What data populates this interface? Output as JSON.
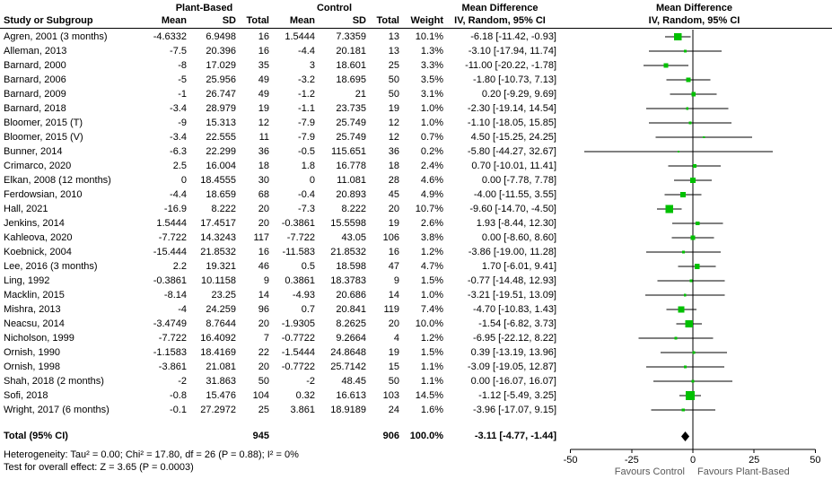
{
  "headers": {
    "study": "Study or Subgroup",
    "group1": "Plant-Based",
    "group2": "Control",
    "mean": "Mean",
    "sd": "SD",
    "total": "Total",
    "weight": "Weight",
    "md_line1": "Mean Difference",
    "md_line2": "IV, Random, 95% CI"
  },
  "footer": {
    "heterogeneity": "Heterogeneity: Tau² = 0.00; Chi² = 17.80, df = 26 (P = 0.88); I² = 0%",
    "overall_effect": "Test for overall effect: Z = 3.65 (P = 0.0003)"
  },
  "colors": {
    "marker_green": "#00c000",
    "line_black": "#000000",
    "diamond_black": "#000000",
    "favours_grey": "#595959"
  },
  "chart_data": {
    "type": "forest",
    "effect_measure": "Mean Difference, IV, Random, 95% CI",
    "axis": {
      "min": -50,
      "max": 50,
      "ticks": [
        {
          "value": -50,
          "label": "-50"
        },
        {
          "value": -25,
          "label": "-25"
        },
        {
          "value": 0,
          "label": "0"
        },
        {
          "value": 25,
          "label": "25"
        },
        {
          "value": 50,
          "label": "50"
        }
      ],
      "favours_left": "Favours Control",
      "favours_right": "Favours Plant-Based"
    },
    "studies": [
      {
        "name": "Agren, 2001 (3 months)",
        "pb_mean": "-4.6332",
        "pb_sd": "6.9498",
        "pb_total": "16",
        "c_mean": "1.5444",
        "c_sd": "7.3359",
        "c_total": "13",
        "weight": "10.1%",
        "md_ci": "-6.18 [-11.42, -0.93]",
        "md": -6.18,
        "lo": -11.42,
        "hi": -0.93
      },
      {
        "name": "Alleman, 2013",
        "pb_mean": "-7.5",
        "pb_sd": "20.396",
        "pb_total": "16",
        "c_mean": "-4.4",
        "c_sd": "20.181",
        "c_total": "13",
        "weight": "1.3%",
        "md_ci": "-3.10 [-17.94, 11.74]",
        "md": -3.1,
        "lo": -17.94,
        "hi": 11.74
      },
      {
        "name": "Barnard, 2000",
        "pb_mean": "-8",
        "pb_sd": "17.029",
        "pb_total": "35",
        "c_mean": "3",
        "c_sd": "18.601",
        "c_total": "25",
        "weight": "3.3%",
        "md_ci": "-11.00 [-20.22, -1.78]",
        "md": -11.0,
        "lo": -20.22,
        "hi": -1.78
      },
      {
        "name": "Barnard, 2006",
        "pb_mean": "-5",
        "pb_sd": "25.956",
        "pb_total": "49",
        "c_mean": "-3.2",
        "c_sd": "18.695",
        "c_total": "50",
        "weight": "3.5%",
        "md_ci": "-1.80 [-10.73, 7.13]",
        "md": -1.8,
        "lo": -10.73,
        "hi": 7.13
      },
      {
        "name": "Barnard, 2009",
        "pb_mean": "-1",
        "pb_sd": "26.747",
        "pb_total": "49",
        "c_mean": "-1.2",
        "c_sd": "21",
        "c_total": "50",
        "weight": "3.1%",
        "md_ci": "0.20 [-9.29, 9.69]",
        "md": 0.2,
        "lo": -9.29,
        "hi": 9.69
      },
      {
        "name": "Barnard, 2018",
        "pb_mean": "-3.4",
        "pb_sd": "28.979",
        "pb_total": "19",
        "c_mean": "-1.1",
        "c_sd": "23.735",
        "c_total": "19",
        "weight": "1.0%",
        "md_ci": "-2.30 [-19.14, 14.54]",
        "md": -2.3,
        "lo": -19.14,
        "hi": 14.54
      },
      {
        "name": "Bloomer, 2015 (T)",
        "pb_mean": "-9",
        "pb_sd": "15.313",
        "pb_total": "12",
        "c_mean": "-7.9",
        "c_sd": "25.749",
        "c_total": "12",
        "weight": "1.0%",
        "md_ci": "-1.10 [-18.05, 15.85]",
        "md": -1.1,
        "lo": -18.05,
        "hi": 15.85
      },
      {
        "name": "Bloomer, 2015 (V)",
        "pb_mean": "-3.4",
        "pb_sd": "22.555",
        "pb_total": "11",
        "c_mean": "-7.9",
        "c_sd": "25.749",
        "c_total": "12",
        "weight": "0.7%",
        "md_ci": "4.50 [-15.25, 24.25]",
        "md": 4.5,
        "lo": -15.25,
        "hi": 24.25
      },
      {
        "name": "Bunner, 2014",
        "pb_mean": "-6.3",
        "pb_sd": "22.299",
        "pb_total": "36",
        "c_mean": "-0.5",
        "c_sd": "115.651",
        "c_total": "36",
        "weight": "0.2%",
        "md_ci": "-5.80 [-44.27, 32.67]",
        "md": -5.8,
        "lo": -44.27,
        "hi": 32.67
      },
      {
        "name": "Crimarco, 2020",
        "pb_mean": "2.5",
        "pb_sd": "16.004",
        "pb_total": "18",
        "c_mean": "1.8",
        "c_sd": "16.778",
        "c_total": "18",
        "weight": "2.4%",
        "md_ci": "0.70 [-10.01, 11.41]",
        "md": 0.7,
        "lo": -10.01,
        "hi": 11.41
      },
      {
        "name": "Elkan, 2008 (12 months)",
        "pb_mean": "0",
        "pb_sd": "18.4555",
        "pb_total": "30",
        "c_mean": "0",
        "c_sd": "11.081",
        "c_total": "28",
        "weight": "4.6%",
        "md_ci": "0.00 [-7.78, 7.78]",
        "md": 0.0,
        "lo": -7.78,
        "hi": 7.78
      },
      {
        "name": "Ferdowsian, 2010",
        "pb_mean": "-4.4",
        "pb_sd": "18.659",
        "pb_total": "68",
        "c_mean": "-0.4",
        "c_sd": "20.893",
        "c_total": "45",
        "weight": "4.9%",
        "md_ci": "-4.00 [-11.55, 3.55]",
        "md": -4.0,
        "lo": -11.55,
        "hi": 3.55
      },
      {
        "name": "Hall, 2021",
        "pb_mean": "-16.9",
        "pb_sd": "8.222",
        "pb_total": "20",
        "c_mean": "-7.3",
        "c_sd": "8.222",
        "c_total": "20",
        "weight": "10.7%",
        "md_ci": "-9.60 [-14.70, -4.50]",
        "md": -9.6,
        "lo": -14.7,
        "hi": -4.5
      },
      {
        "name": "Jenkins, 2014",
        "pb_mean": "1.5444",
        "pb_sd": "17.4517",
        "pb_total": "20",
        "c_mean": "-0.3861",
        "c_sd": "15.5598",
        "c_total": "19",
        "weight": "2.6%",
        "md_ci": "1.93 [-8.44, 12.30]",
        "md": 1.93,
        "lo": -8.44,
        "hi": 12.3
      },
      {
        "name": "Kahleova, 2020",
        "pb_mean": "-7.722",
        "pb_sd": "14.3243",
        "pb_total": "117",
        "c_mean": "-7.722",
        "c_sd": "43.05",
        "c_total": "106",
        "weight": "3.8%",
        "md_ci": "0.00 [-8.60, 8.60]",
        "md": 0.0,
        "lo": -8.6,
        "hi": 8.6
      },
      {
        "name": "Koebnick, 2004",
        "pb_mean": "-15.444",
        "pb_sd": "21.8532",
        "pb_total": "16",
        "c_mean": "-11.583",
        "c_sd": "21.8532",
        "c_total": "16",
        "weight": "1.2%",
        "md_ci": "-3.86 [-19.00, 11.28]",
        "md": -3.86,
        "lo": -19.0,
        "hi": 11.28
      },
      {
        "name": "Lee, 2016 (3 months)",
        "pb_mean": "2.2",
        "pb_sd": "19.321",
        "pb_total": "46",
        "c_mean": "0.5",
        "c_sd": "18.598",
        "c_total": "47",
        "weight": "4.7%",
        "md_ci": "1.70 [-6.01, 9.41]",
        "md": 1.7,
        "lo": -6.01,
        "hi": 9.41
      },
      {
        "name": "Ling, 1992",
        "pb_mean": "-0.3861",
        "pb_sd": "10.1158",
        "pb_total": "9",
        "c_mean": "0.3861",
        "c_sd": "18.3783",
        "c_total": "9",
        "weight": "1.5%",
        "md_ci": "-0.77 [-14.48, 12.93]",
        "md": -0.77,
        "lo": -14.48,
        "hi": 12.93
      },
      {
        "name": "Macklin, 2015",
        "pb_mean": "-8.14",
        "pb_sd": "23.25",
        "pb_total": "14",
        "c_mean": "-4.93",
        "c_sd": "20.686",
        "c_total": "14",
        "weight": "1.0%",
        "md_ci": "-3.21 [-19.51, 13.09]",
        "md": -3.21,
        "lo": -19.51,
        "hi": 13.09
      },
      {
        "name": "Mishra, 2013",
        "pb_mean": "-4",
        "pb_sd": "24.259",
        "pb_total": "96",
        "c_mean": "0.7",
        "c_sd": "20.841",
        "c_total": "119",
        "weight": "7.4%",
        "md_ci": "-4.70 [-10.83, 1.43]",
        "md": -4.7,
        "lo": -10.83,
        "hi": 1.43
      },
      {
        "name": "Neacsu, 2014",
        "pb_mean": "-3.4749",
        "pb_sd": "8.7644",
        "pb_total": "20",
        "c_mean": "-1.9305",
        "c_sd": "8.2625",
        "c_total": "20",
        "weight": "10.0%",
        "md_ci": "-1.54 [-6.82, 3.73]",
        "md": -1.54,
        "lo": -6.82,
        "hi": 3.73
      },
      {
        "name": "Nicholson, 1999",
        "pb_mean": "-7.722",
        "pb_sd": "16.4092",
        "pb_total": "7",
        "c_mean": "-0.7722",
        "c_sd": "9.2664",
        "c_total": "4",
        "weight": "1.2%",
        "md_ci": "-6.95 [-22.12, 8.22]",
        "md": -6.95,
        "lo": -22.12,
        "hi": 8.22
      },
      {
        "name": "Ornish, 1990",
        "pb_mean": "-1.1583",
        "pb_sd": "18.4169",
        "pb_total": "22",
        "c_mean": "-1.5444",
        "c_sd": "24.8648",
        "c_total": "19",
        "weight": "1.5%",
        "md_ci": "0.39 [-13.19, 13.96]",
        "md": 0.39,
        "lo": -13.19,
        "hi": 13.96
      },
      {
        "name": "Ornish, 1998",
        "pb_mean": "-3.861",
        "pb_sd": "21.081",
        "pb_total": "20",
        "c_mean": "-0.7722",
        "c_sd": "25.7142",
        "c_total": "15",
        "weight": "1.1%",
        "md_ci": "-3.09 [-19.05, 12.87]",
        "md": -3.09,
        "lo": -19.05,
        "hi": 12.87
      },
      {
        "name": "Shah, 2018 (2 months)",
        "pb_mean": "-2",
        "pb_sd": "31.863",
        "pb_total": "50",
        "c_mean": "-2",
        "c_sd": "48.45",
        "c_total": "50",
        "weight": "1.1%",
        "md_ci": "0.00 [-16.07, 16.07]",
        "md": 0.0,
        "lo": -16.07,
        "hi": 16.07
      },
      {
        "name": "Sofi, 2018",
        "pb_mean": "-0.8",
        "pb_sd": "15.476",
        "pb_total": "104",
        "c_mean": "0.32",
        "c_sd": "16.613",
        "c_total": "103",
        "weight": "14.5%",
        "md_ci": "-1.12 [-5.49, 3.25]",
        "md": -1.12,
        "lo": -5.49,
        "hi": 3.25
      },
      {
        "name": "Wright, 2017 (6 months)",
        "pb_mean": "-0.1",
        "pb_sd": "27.2972",
        "pb_total": "25",
        "c_mean": "3.861",
        "c_sd": "18.9189",
        "c_total": "24",
        "weight": "1.6%",
        "md_ci": "-3.96 [-17.07, 9.15]",
        "md": -3.96,
        "lo": -17.07,
        "hi": 9.15
      }
    ],
    "total": {
      "label": "Total (95% CI)",
      "pb_total": "945",
      "c_total": "906",
      "weight": "100.0%",
      "md_ci": "-3.11 [-4.77, -1.44]",
      "md": -3.11,
      "lo": -4.77,
      "hi": -1.44
    }
  }
}
